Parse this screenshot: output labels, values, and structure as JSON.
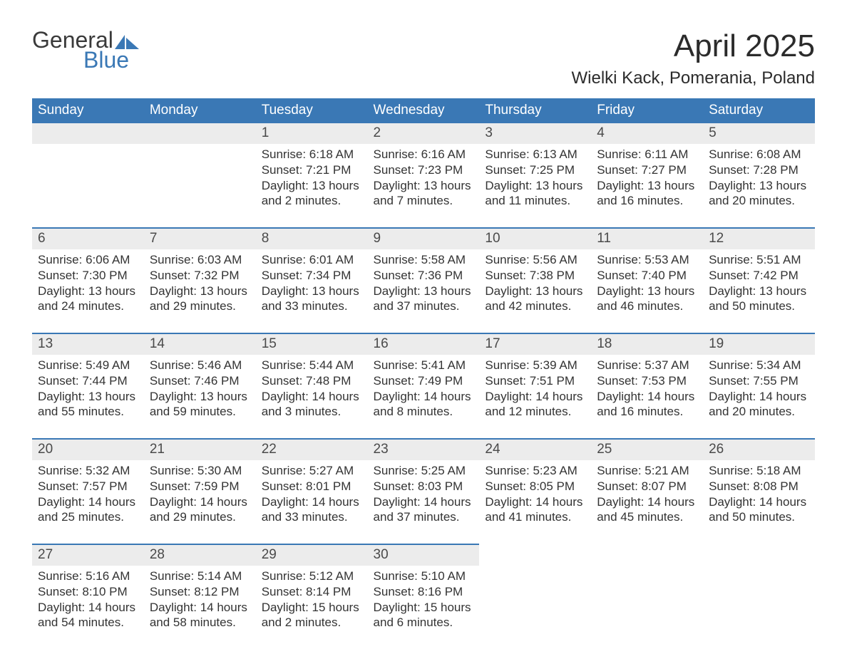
{
  "logo": {
    "word1": "General",
    "word2": "Blue",
    "sail_color": "#3a78b5",
    "text_color": "#3a3a3a"
  },
  "header": {
    "month_title": "April 2025",
    "location": "Wielki Kack, Pomerania, Poland"
  },
  "colors": {
    "header_bg": "#3a78b5",
    "header_fg": "#ffffff",
    "daynum_bg": "#ececec",
    "daynum_fg": "#4a4a4a",
    "row_divider": "#3a78b5",
    "body_text": "#333333",
    "page_bg": "#ffffff"
  },
  "font": {
    "family": "Arial",
    "header_size_pt": 14,
    "title_size_pt": 33,
    "location_size_pt": 18,
    "daynum_size_pt": 14,
    "body_size_pt": 13
  },
  "day_labels": [
    "Sunday",
    "Monday",
    "Tuesday",
    "Wednesday",
    "Thursday",
    "Friday",
    "Saturday"
  ],
  "line_labels": {
    "sunrise": "Sunrise:",
    "sunset": "Sunset:",
    "daylight": "Daylight:"
  },
  "weeks": [
    [
      {
        "empty": true
      },
      {
        "empty": true
      },
      {
        "n": "1",
        "sunrise": "6:18 AM",
        "sunset": "7:21 PM",
        "daylight1": "13 hours",
        "daylight2": "and 2 minutes."
      },
      {
        "n": "2",
        "sunrise": "6:16 AM",
        "sunset": "7:23 PM",
        "daylight1": "13 hours",
        "daylight2": "and 7 minutes."
      },
      {
        "n": "3",
        "sunrise": "6:13 AM",
        "sunset": "7:25 PM",
        "daylight1": "13 hours",
        "daylight2": "and 11 minutes."
      },
      {
        "n": "4",
        "sunrise": "6:11 AM",
        "sunset": "7:27 PM",
        "daylight1": "13 hours",
        "daylight2": "and 16 minutes."
      },
      {
        "n": "5",
        "sunrise": "6:08 AM",
        "sunset": "7:28 PM",
        "daylight1": "13 hours",
        "daylight2": "and 20 minutes."
      }
    ],
    [
      {
        "n": "6",
        "sunrise": "6:06 AM",
        "sunset": "7:30 PM",
        "daylight1": "13 hours",
        "daylight2": "and 24 minutes."
      },
      {
        "n": "7",
        "sunrise": "6:03 AM",
        "sunset": "7:32 PM",
        "daylight1": "13 hours",
        "daylight2": "and 29 minutes."
      },
      {
        "n": "8",
        "sunrise": "6:01 AM",
        "sunset": "7:34 PM",
        "daylight1": "13 hours",
        "daylight2": "and 33 minutes."
      },
      {
        "n": "9",
        "sunrise": "5:58 AM",
        "sunset": "7:36 PM",
        "daylight1": "13 hours",
        "daylight2": "and 37 minutes."
      },
      {
        "n": "10",
        "sunrise": "5:56 AM",
        "sunset": "7:38 PM",
        "daylight1": "13 hours",
        "daylight2": "and 42 minutes."
      },
      {
        "n": "11",
        "sunrise": "5:53 AM",
        "sunset": "7:40 PM",
        "daylight1": "13 hours",
        "daylight2": "and 46 minutes."
      },
      {
        "n": "12",
        "sunrise": "5:51 AM",
        "sunset": "7:42 PM",
        "daylight1": "13 hours",
        "daylight2": "and 50 minutes."
      }
    ],
    [
      {
        "n": "13",
        "sunrise": "5:49 AM",
        "sunset": "7:44 PM",
        "daylight1": "13 hours",
        "daylight2": "and 55 minutes."
      },
      {
        "n": "14",
        "sunrise": "5:46 AM",
        "sunset": "7:46 PM",
        "daylight1": "13 hours",
        "daylight2": "and 59 minutes."
      },
      {
        "n": "15",
        "sunrise": "5:44 AM",
        "sunset": "7:48 PM",
        "daylight1": "14 hours",
        "daylight2": "and 3 minutes."
      },
      {
        "n": "16",
        "sunrise": "5:41 AM",
        "sunset": "7:49 PM",
        "daylight1": "14 hours",
        "daylight2": "and 8 minutes."
      },
      {
        "n": "17",
        "sunrise": "5:39 AM",
        "sunset": "7:51 PM",
        "daylight1": "14 hours",
        "daylight2": "and 12 minutes."
      },
      {
        "n": "18",
        "sunrise": "5:37 AM",
        "sunset": "7:53 PM",
        "daylight1": "14 hours",
        "daylight2": "and 16 minutes."
      },
      {
        "n": "19",
        "sunrise": "5:34 AM",
        "sunset": "7:55 PM",
        "daylight1": "14 hours",
        "daylight2": "and 20 minutes."
      }
    ],
    [
      {
        "n": "20",
        "sunrise": "5:32 AM",
        "sunset": "7:57 PM",
        "daylight1": "14 hours",
        "daylight2": "and 25 minutes."
      },
      {
        "n": "21",
        "sunrise": "5:30 AM",
        "sunset": "7:59 PM",
        "daylight1": "14 hours",
        "daylight2": "and 29 minutes."
      },
      {
        "n": "22",
        "sunrise": "5:27 AM",
        "sunset": "8:01 PM",
        "daylight1": "14 hours",
        "daylight2": "and 33 minutes."
      },
      {
        "n": "23",
        "sunrise": "5:25 AM",
        "sunset": "8:03 PM",
        "daylight1": "14 hours",
        "daylight2": "and 37 minutes."
      },
      {
        "n": "24",
        "sunrise": "5:23 AM",
        "sunset": "8:05 PM",
        "daylight1": "14 hours",
        "daylight2": "and 41 minutes."
      },
      {
        "n": "25",
        "sunrise": "5:21 AM",
        "sunset": "8:07 PM",
        "daylight1": "14 hours",
        "daylight2": "and 45 minutes."
      },
      {
        "n": "26",
        "sunrise": "5:18 AM",
        "sunset": "8:08 PM",
        "daylight1": "14 hours",
        "daylight2": "and 50 minutes."
      }
    ],
    [
      {
        "n": "27",
        "sunrise": "5:16 AM",
        "sunset": "8:10 PM",
        "daylight1": "14 hours",
        "daylight2": "and 54 minutes."
      },
      {
        "n": "28",
        "sunrise": "5:14 AM",
        "sunset": "8:12 PM",
        "daylight1": "14 hours",
        "daylight2": "and 58 minutes."
      },
      {
        "n": "29",
        "sunrise": "5:12 AM",
        "sunset": "8:14 PM",
        "daylight1": "15 hours",
        "daylight2": "and 2 minutes."
      },
      {
        "n": "30",
        "sunrise": "5:10 AM",
        "sunset": "8:16 PM",
        "daylight1": "15 hours",
        "daylight2": "and 6 minutes."
      },
      {
        "empty": true
      },
      {
        "empty": true
      },
      {
        "empty": true
      }
    ]
  ]
}
